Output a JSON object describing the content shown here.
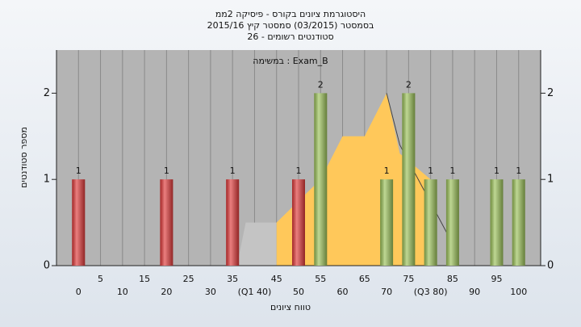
{
  "chart_data": {
    "type": "histogram",
    "title": "היסטוגרמת ציונים בקורס - פיסיקה 2ממ",
    "subtitle": "בסמסטר  (03/2015)  סמסטר קיץ 2015/16",
    "subtitle2": "26 - סטודנטים רשומים",
    "annotation": "במשימה : Exam_B",
    "y_label": "מספר סטודנטים",
    "x_label": "טווח ציונים",
    "xlim": [
      -5,
      105
    ],
    "ylim": [
      0,
      2.5
    ],
    "xticks": [
      0,
      5,
      10,
      15,
      20,
      25,
      30,
      35,
      {
        "value": 40,
        "label": "(Q1 40)"
      },
      45,
      50,
      55,
      60,
      65,
      70,
      75,
      {
        "value": 80,
        "label": "(Q3 80)"
      },
      85,
      90,
      95,
      100
    ],
    "yticks": [
      0,
      1,
      2
    ],
    "grid": true,
    "series": [
      {
        "color": "#e03a3a",
        "x": [
          0,
          20,
          35,
          50
        ],
        "values": [
          1,
          1,
          1,
          1
        ]
      },
      {
        "color": "#9cc25a",
        "x": [
          55,
          70,
          75,
          80,
          85,
          95,
          100
        ],
        "values": [
          2,
          1,
          2,
          1,
          1,
          1,
          1
        ]
      }
    ],
    "areas": [
      {
        "color": "#c4c4c4",
        "x": [
          36,
          38,
          45
        ],
        "values": [
          0,
          0.5,
          0.5
        ]
      },
      {
        "color": "#ffc85a",
        "x": [
          45,
          55,
          60,
          65,
          70,
          73,
          80
        ],
        "values": [
          0.5,
          1,
          1.5,
          1.5,
          2,
          1.3,
          1
        ]
      }
    ],
    "line": {
      "color": "#444444",
      "x": [
        70,
        73,
        84
      ],
      "values": [
        2,
        1.4,
        0.35
      ]
    }
  }
}
